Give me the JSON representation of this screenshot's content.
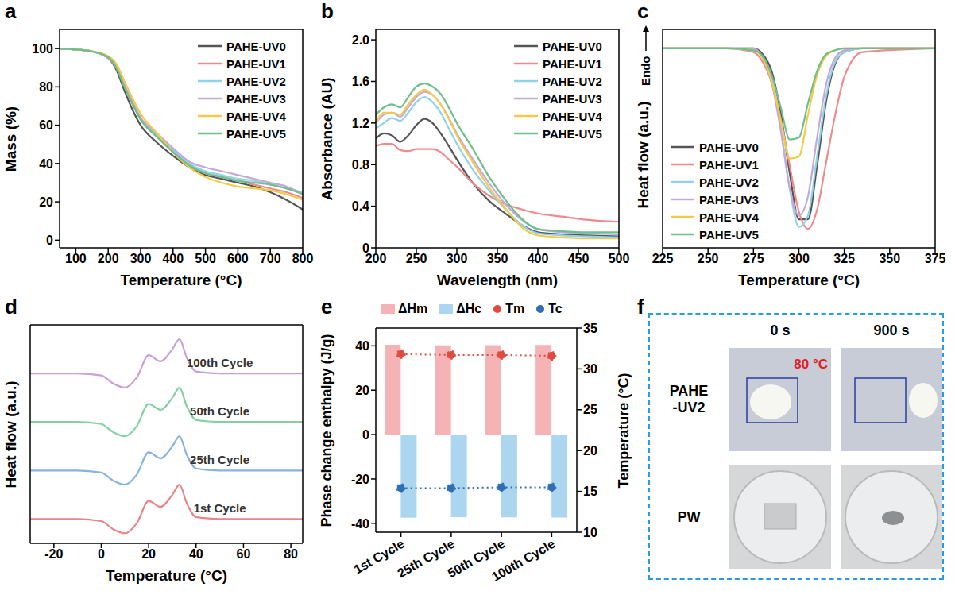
{
  "chart_data": [
    {
      "panel_label": "a",
      "type": "line",
      "x_label": "Temperature (°C)",
      "y_label": "Mass (%)",
      "x": [
        50,
        100,
        150,
        200,
        225,
        250,
        275,
        300,
        350,
        400,
        450,
        500,
        550,
        600,
        650,
        700,
        750,
        800
      ],
      "xlim": [
        50,
        800
      ],
      "xticks": [
        100,
        200,
        300,
        400,
        500,
        600,
        700,
        800
      ],
      "ylim": [
        -4,
        110
      ],
      "yticks": [
        0,
        20,
        40,
        60,
        80,
        100
      ],
      "legend": "upper right",
      "series": [
        {
          "name": "PAHE-UV0",
          "color": "#555555",
          "values": [
            100,
            99.5,
            98.5,
            95,
            89,
            78,
            68,
            60,
            51,
            44,
            38,
            34,
            32,
            30,
            28,
            25,
            21,
            16
          ]
        },
        {
          "name": "PAHE-UV1",
          "color": "#f08a8a",
          "values": [
            100,
            99.5,
            98.5,
            95,
            90,
            80,
            71,
            63,
            54,
            46,
            39,
            35,
            33,
            31,
            29,
            27,
            25,
            22
          ]
        },
        {
          "name": "PAHE-UV2",
          "color": "#8fd3e8",
          "values": [
            100,
            99.5,
            98.5,
            95.5,
            91,
            81,
            72,
            64,
            55,
            47,
            40,
            36,
            34,
            32,
            31,
            29,
            27,
            25
          ]
        },
        {
          "name": "PAHE-UV3",
          "color": "#c4a8dc",
          "values": [
            100,
            99.5,
            98.5,
            95.5,
            91,
            81,
            72,
            64,
            56,
            48,
            41,
            38,
            36,
            34,
            32,
            30,
            28,
            24
          ]
        },
        {
          "name": "PAHE-UV4",
          "color": "#f7c948",
          "values": [
            100,
            99.5,
            98.6,
            96,
            92,
            83,
            74,
            66,
            56,
            46,
            38,
            33,
            30,
            28,
            27,
            26,
            24,
            21
          ]
        },
        {
          "name": "PAHE-UV5",
          "color": "#6cc08b",
          "values": [
            100,
            99.5,
            98.5,
            95.5,
            90,
            80,
            71,
            63,
            54,
            46,
            39,
            35,
            33,
            31,
            30,
            29,
            27,
            24
          ]
        }
      ]
    },
    {
      "panel_label": "b",
      "type": "line",
      "x_label": "Wavelength (nm)",
      "y_label": "Absorbance (AU)",
      "x": [
        200,
        210,
        220,
        230,
        240,
        250,
        260,
        270,
        280,
        290,
        300,
        320,
        340,
        360,
        380,
        400,
        430,
        460,
        500
      ],
      "xlim": [
        200,
        500
      ],
      "xticks": [
        200,
        250,
        300,
        350,
        400,
        450,
        500
      ],
      "ylim": [
        0,
        2.1
      ],
      "yticks": [
        0,
        0.4,
        0.8,
        1.2,
        1.6,
        {
          "value": 2,
          "label": "2.0"
        }
      ],
      "legend": "upper right",
      "series": [
        {
          "name": "PAHE-UV0",
          "color": "#555555",
          "values": [
            1.05,
            1.1,
            1.08,
            1.02,
            1.08,
            1.18,
            1.24,
            1.2,
            1.1,
            0.98,
            0.85,
            0.62,
            0.45,
            0.33,
            0.22,
            0.15,
            0.13,
            0.12,
            0.11
          ]
        },
        {
          "name": "PAHE-UV1",
          "color": "#f08a8a",
          "values": [
            0.98,
            1.0,
            1.0,
            0.94,
            0.93,
            0.95,
            0.95,
            0.95,
            0.92,
            0.85,
            0.78,
            0.62,
            0.5,
            0.42,
            0.37,
            0.33,
            0.3,
            0.27,
            0.25
          ]
        },
        {
          "name": "PAHE-UV2",
          "color": "#8fd3e8",
          "values": [
            1.15,
            1.2,
            1.25,
            1.22,
            1.3,
            1.4,
            1.45,
            1.4,
            1.3,
            1.15,
            1.0,
            0.75,
            0.55,
            0.37,
            0.22,
            0.14,
            0.12,
            0.11,
            0.1
          ]
        },
        {
          "name": "PAHE-UV3",
          "color": "#c4a8dc",
          "values": [
            1.2,
            1.28,
            1.3,
            1.26,
            1.35,
            1.45,
            1.5,
            1.47,
            1.38,
            1.25,
            1.1,
            0.85,
            0.62,
            0.42,
            0.27,
            0.18,
            0.15,
            0.14,
            0.13
          ]
        },
        {
          "name": "PAHE-UV4",
          "color": "#f7c948",
          "values": [
            1.2,
            1.3,
            1.3,
            1.28,
            1.38,
            1.47,
            1.52,
            1.47,
            1.38,
            1.24,
            1.08,
            0.82,
            0.58,
            0.38,
            0.2,
            0.12,
            0.1,
            0.09,
            0.09
          ]
        },
        {
          "name": "PAHE-UV5",
          "color": "#6cc08b",
          "values": [
            1.28,
            1.35,
            1.38,
            1.35,
            1.45,
            1.55,
            1.58,
            1.55,
            1.48,
            1.35,
            1.2,
            0.95,
            0.68,
            0.46,
            0.28,
            0.18,
            0.16,
            0.15,
            0.15
          ]
        }
      ]
    },
    {
      "panel_label": "c",
      "type": "line",
      "x_label": "Temperature (°C)",
      "y_label": "Heat flow (a.u.)",
      "annotation": "Endo",
      "tick_labels": "x",
      "x": [
        225,
        260,
        275,
        280,
        285,
        290,
        295,
        300,
        305,
        310,
        315,
        320,
        325,
        335,
        375
      ],
      "xlim": [
        225,
        375
      ],
      "xticks": [
        225,
        250,
        275,
        300,
        325,
        350,
        375
      ],
      "ylim": [
        -1.05,
        0.1
      ],
      "legend": "lower left",
      "series": [
        {
          "name": "PAHE-UV0",
          "color": "#555555",
          "values": [
            0,
            0,
            0,
            -0.03,
            -0.12,
            -0.34,
            -0.66,
            -0.9,
            -0.9,
            -0.62,
            -0.28,
            -0.08,
            -0.02,
            0,
            0
          ]
        },
        {
          "name": "PAHE-UV1",
          "color": "#f08a8a",
          "values": [
            0,
            0,
            -0.02,
            -0.07,
            -0.18,
            -0.37,
            -0.62,
            -0.86,
            -0.95,
            -0.85,
            -0.6,
            -0.35,
            -0.15,
            -0.02,
            0
          ]
        },
        {
          "name": "PAHE-UV2",
          "color": "#8fd3e8",
          "values": [
            0,
            0,
            -0.01,
            -0.05,
            -0.17,
            -0.42,
            -0.74,
            -0.94,
            -0.88,
            -0.57,
            -0.25,
            -0.07,
            -0.02,
            0,
            0
          ]
        },
        {
          "name": "PAHE-UV3",
          "color": "#c4a8dc",
          "values": [
            0,
            0,
            0,
            -0.05,
            -0.18,
            -0.43,
            -0.74,
            -0.88,
            -0.78,
            -0.47,
            -0.19,
            -0.05,
            -0.01,
            0,
            0
          ]
        },
        {
          "name": "PAHE-UV4",
          "color": "#f7c948",
          "values": [
            0,
            0,
            -0.01,
            -0.05,
            -0.17,
            -0.38,
            -0.58,
            -0.57,
            -0.35,
            -0.14,
            -0.04,
            -0.01,
            0,
            0,
            0
          ]
        },
        {
          "name": "PAHE-UV5",
          "color": "#6cc08b",
          "values": [
            0,
            0,
            -0.01,
            -0.04,
            -0.14,
            -0.31,
            -0.48,
            -0.47,
            -0.29,
            -0.12,
            -0.03,
            -0.01,
            0,
            0,
            0
          ]
        }
      ]
    },
    {
      "panel_label": "d",
      "type": "line",
      "x_label": "Temperature (°C)",
      "y_label": "Heat flow (a.u.)",
      "tick_labels": "x",
      "x": [
        -30,
        -10,
        0,
        5,
        10,
        15,
        20,
        25,
        30,
        33,
        36,
        40,
        50,
        85
      ],
      "xlim": [
        -30,
        85
      ],
      "xticks": [
        -20,
        0,
        20,
        40,
        60,
        80
      ],
      "ylim": [
        -0.6,
        4.8
      ],
      "series": [
        {
          "name": "1st Cycle",
          "color": "#e8858a",
          "values": [
            0,
            0,
            -0.05,
            -0.25,
            -0.35,
            -0.1,
            0.45,
            0.3,
            0.6,
            0.85,
            0.4,
            0.05,
            0,
            0
          ]
        },
        {
          "name": "25th Cycle",
          "color": "#86b3e0",
          "values": [
            1.2,
            1.2,
            1.15,
            0.95,
            0.85,
            1.1,
            1.65,
            1.5,
            1.8,
            2.05,
            1.6,
            1.25,
            1.2,
            1.2
          ]
        },
        {
          "name": "50th Cycle",
          "color": "#86cfa3",
          "values": [
            2.4,
            2.4,
            2.35,
            2.15,
            2.05,
            2.3,
            2.85,
            2.7,
            3.0,
            3.25,
            2.8,
            2.45,
            2.4,
            2.4
          ]
        },
        {
          "name": "100th Cycle",
          "color": "#c9a0d8",
          "values": [
            3.6,
            3.6,
            3.55,
            3.35,
            3.25,
            3.5,
            4.05,
            3.9,
            4.2,
            4.45,
            4.0,
            3.65,
            3.6,
            3.6
          ]
        }
      ]
    },
    {
      "panel_label": "e",
      "type": "bar",
      "y_label": "Phase change enthalpy (J/g)",
      "y2_label": "Temperature (°C)",
      "categories": [
        "1st Cycle",
        "25th Cycle",
        "50th Cycle",
        "100th Cycle"
      ],
      "ylim": [
        -44,
        48
      ],
      "yticks": [
        -40,
        -20,
        0,
        20,
        40
      ],
      "y2lim": [
        10,
        35
      ],
      "y2ticks": [
        10,
        15,
        20,
        25,
        30,
        35
      ],
      "legend": "top",
      "series": [
        {
          "name": "ΔHm",
          "type": "bar",
          "color": "#f5b3b6",
          "values": [
            40.5,
            40.2,
            40.3,
            40.4
          ]
        },
        {
          "name": "ΔHc",
          "type": "bar",
          "color": "#acd6ef",
          "values": [
            -37.5,
            -37.2,
            -37.3,
            -37.4
          ]
        },
        {
          "name": "Tm",
          "type": "line",
          "axis": "y2",
          "color": "#e04a3f",
          "marker": "circle",
          "line_style": "dotted",
          "values": [
            31.8,
            31.7,
            31.7,
            31.6
          ]
        },
        {
          "name": "Tc",
          "type": "line",
          "axis": "y2",
          "color": "#2f6db5",
          "marker": "circle",
          "line_style": "dotted",
          "values": [
            15.4,
            15.4,
            15.5,
            15.5
          ]
        }
      ]
    }
  ],
  "panel_f": {
    "panel_label": "f",
    "columns": [
      "0 s",
      "900 s"
    ],
    "rows": [
      "PAHE-UV2",
      "PW"
    ],
    "annotation": "80 °C"
  }
}
